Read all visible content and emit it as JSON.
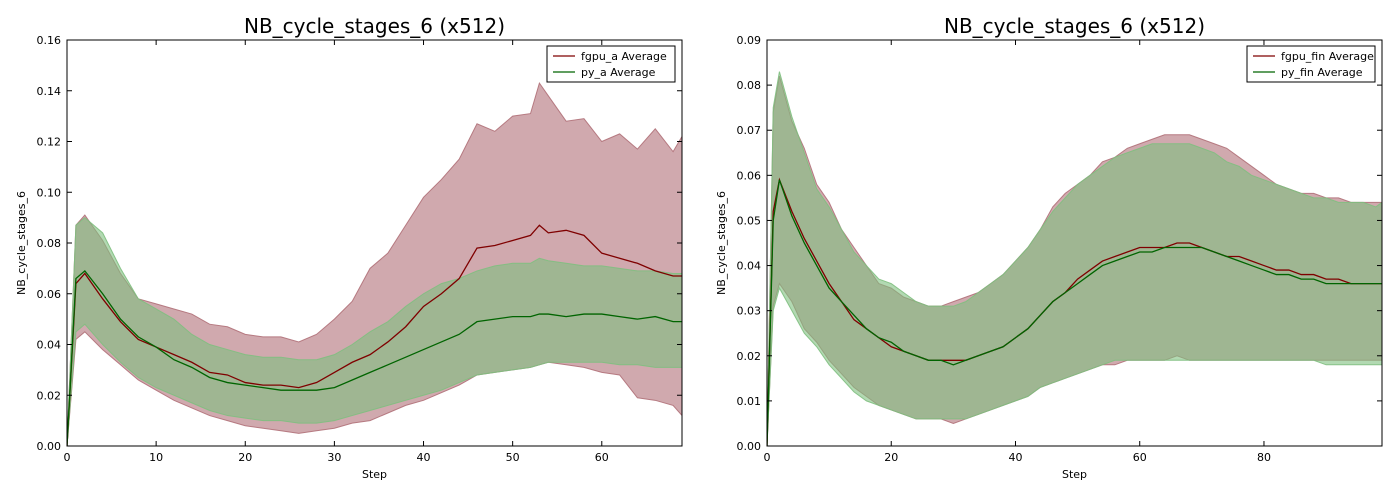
{
  "chart_data": [
    {
      "type": "line",
      "title": "NB_cycle_stages_6 (x512)",
      "xlabel": "Step",
      "ylabel": "NB_cycle_stages_6",
      "xlim": [
        0,
        69
      ],
      "ylim": [
        0,
        0.16
      ],
      "xticks": [
        0,
        10,
        20,
        30,
        40,
        50,
        60
      ],
      "xtick_labels": [
        "0",
        "10",
        "20",
        "30",
        "40",
        "50",
        "60"
      ],
      "yticks": [
        0,
        0.02,
        0.04,
        0.06,
        0.08,
        0.1,
        0.12,
        0.14,
        0.16
      ],
      "ytick_labels": [
        "0.00",
        "0.02",
        "0.04",
        "0.06",
        "0.08",
        "0.10",
        "0.12",
        "0.14",
        "0.16"
      ],
      "legend_position": "top-right",
      "grid": false,
      "series": [
        {
          "name": "fgpu_a Average",
          "line_color": "#7f0000",
          "band_color": "#b07078",
          "x": [
            0,
            1,
            2,
            4,
            6,
            8,
            10,
            12,
            14,
            16,
            18,
            20,
            22,
            24,
            26,
            28,
            30,
            32,
            34,
            36,
            38,
            40,
            42,
            44,
            46,
            48,
            50,
            52,
            53,
            54,
            56,
            58,
            60,
            62,
            64,
            66,
            68,
            69
          ],
          "mean": [
            0,
            0.064,
            0.068,
            0.058,
            0.049,
            0.042,
            0.039,
            0.036,
            0.033,
            0.029,
            0.028,
            0.025,
            0.024,
            0.024,
            0.023,
            0.025,
            0.029,
            0.033,
            0.036,
            0.041,
            0.047,
            0.055,
            0.06,
            0.066,
            0.078,
            0.079,
            0.081,
            0.083,
            0.087,
            0.084,
            0.085,
            0.083,
            0.076,
            0.074,
            0.072,
            0.069,
            0.067,
            0.067
          ],
          "upper": [
            0,
            0.087,
            0.091,
            0.081,
            0.068,
            0.058,
            0.056,
            0.054,
            0.052,
            0.048,
            0.047,
            0.044,
            0.043,
            0.043,
            0.041,
            0.044,
            0.05,
            0.057,
            0.07,
            0.076,
            0.087,
            0.098,
            0.105,
            0.113,
            0.127,
            0.124,
            0.13,
            0.131,
            0.143,
            0.138,
            0.128,
            0.129,
            0.12,
            0.123,
            0.117,
            0.125,
            0.116,
            0.122
          ],
          "lower": [
            0,
            0.042,
            0.045,
            0.038,
            0.032,
            0.026,
            0.022,
            0.018,
            0.015,
            0.012,
            0.01,
            0.008,
            0.007,
            0.006,
            0.005,
            0.006,
            0.007,
            0.009,
            0.01,
            0.013,
            0.016,
            0.018,
            0.021,
            0.024,
            0.028,
            0.029,
            0.03,
            0.031,
            0.032,
            0.033,
            0.032,
            0.031,
            0.029,
            0.028,
            0.019,
            0.018,
            0.016,
            0.012
          ]
        },
        {
          "name": "py_a Average",
          "line_color": "#006400",
          "band_color": "#7fbf7f",
          "x": [
            0,
            1,
            2,
            4,
            6,
            8,
            10,
            12,
            14,
            16,
            18,
            20,
            22,
            24,
            26,
            28,
            30,
            32,
            34,
            36,
            38,
            40,
            42,
            44,
            46,
            48,
            50,
            52,
            53,
            54,
            56,
            58,
            60,
            62,
            64,
            66,
            68,
            69
          ],
          "mean": [
            0,
            0.066,
            0.069,
            0.06,
            0.05,
            0.043,
            0.039,
            0.034,
            0.031,
            0.027,
            0.025,
            0.024,
            0.023,
            0.022,
            0.022,
            0.022,
            0.023,
            0.026,
            0.029,
            0.032,
            0.035,
            0.038,
            0.041,
            0.044,
            0.049,
            0.05,
            0.051,
            0.051,
            0.052,
            0.052,
            0.051,
            0.052,
            0.052,
            0.051,
            0.05,
            0.051,
            0.049,
            0.049
          ],
          "upper": [
            0,
            0.087,
            0.09,
            0.084,
            0.07,
            0.058,
            0.054,
            0.05,
            0.044,
            0.04,
            0.038,
            0.036,
            0.035,
            0.035,
            0.034,
            0.034,
            0.036,
            0.04,
            0.045,
            0.049,
            0.055,
            0.06,
            0.064,
            0.066,
            0.069,
            0.071,
            0.072,
            0.072,
            0.074,
            0.073,
            0.072,
            0.071,
            0.071,
            0.07,
            0.069,
            0.069,
            0.068,
            0.068
          ],
          "lower": [
            0,
            0.045,
            0.048,
            0.04,
            0.033,
            0.027,
            0.023,
            0.02,
            0.017,
            0.014,
            0.012,
            0.011,
            0.01,
            0.01,
            0.009,
            0.009,
            0.01,
            0.012,
            0.014,
            0.016,
            0.018,
            0.02,
            0.022,
            0.025,
            0.028,
            0.029,
            0.03,
            0.031,
            0.032,
            0.033,
            0.033,
            0.033,
            0.033,
            0.032,
            0.032,
            0.031,
            0.031,
            0.031
          ]
        }
      ]
    },
    {
      "type": "line",
      "title": "NB_cycle_stages_6 (x512)",
      "xlabel": "Step",
      "ylabel": "NB_cycle_stages_6",
      "xlim": [
        0,
        99
      ],
      "ylim": [
        0,
        0.09
      ],
      "xticks": [
        0,
        20,
        40,
        60,
        80
      ],
      "xtick_labels": [
        "0",
        "20",
        "40",
        "60",
        "80"
      ],
      "yticks": [
        0,
        0.01,
        0.02,
        0.03,
        0.04,
        0.05,
        0.06,
        0.07,
        0.08,
        0.09
      ],
      "ytick_labels": [
        "0.00",
        "0.01",
        "0.02",
        "0.03",
        "0.04",
        "0.05",
        "0.06",
        "0.07",
        "0.08",
        "0.09"
      ],
      "legend_position": "top-right",
      "grid": false,
      "series": [
        {
          "name": "fgpu_fin Average",
          "line_color": "#7f0000",
          "band_color": "#b07078",
          "x": [
            0,
            1,
            2,
            4,
            6,
            8,
            10,
            12,
            14,
            16,
            18,
            20,
            22,
            24,
            26,
            28,
            30,
            32,
            34,
            36,
            38,
            40,
            42,
            44,
            46,
            48,
            50,
            52,
            54,
            56,
            58,
            60,
            62,
            64,
            66,
            68,
            70,
            72,
            74,
            76,
            78,
            80,
            82,
            84,
            86,
            88,
            90,
            92,
            94,
            96,
            98,
            99
          ],
          "mean": [
            0,
            0.052,
            0.059,
            0.052,
            0.046,
            0.041,
            0.036,
            0.032,
            0.028,
            0.026,
            0.024,
            0.022,
            0.021,
            0.02,
            0.019,
            0.019,
            0.019,
            0.019,
            0.02,
            0.021,
            0.022,
            0.024,
            0.026,
            0.029,
            0.032,
            0.034,
            0.037,
            0.039,
            0.041,
            0.042,
            0.043,
            0.044,
            0.044,
            0.044,
            0.045,
            0.045,
            0.044,
            0.043,
            0.042,
            0.042,
            0.041,
            0.04,
            0.039,
            0.039,
            0.038,
            0.038,
            0.037,
            0.037,
            0.036,
            0.036,
            0.036,
            0.036
          ],
          "upper": [
            0,
            0.074,
            0.082,
            0.072,
            0.066,
            0.058,
            0.054,
            0.048,
            0.044,
            0.04,
            0.036,
            0.035,
            0.033,
            0.032,
            0.031,
            0.031,
            0.032,
            0.033,
            0.034,
            0.036,
            0.038,
            0.041,
            0.044,
            0.048,
            0.053,
            0.056,
            0.058,
            0.06,
            0.063,
            0.064,
            0.066,
            0.067,
            0.068,
            0.069,
            0.069,
            0.069,
            0.068,
            0.067,
            0.066,
            0.064,
            0.062,
            0.06,
            0.058,
            0.057,
            0.056,
            0.056,
            0.055,
            0.055,
            0.054,
            0.054,
            0.054,
            0.054
          ],
          "lower": [
            0,
            0.031,
            0.036,
            0.032,
            0.026,
            0.023,
            0.019,
            0.016,
            0.013,
            0.011,
            0.009,
            0.008,
            0.007,
            0.006,
            0.006,
            0.006,
            0.005,
            0.006,
            0.007,
            0.008,
            0.009,
            0.01,
            0.011,
            0.013,
            0.014,
            0.015,
            0.016,
            0.017,
            0.018,
            0.018,
            0.019,
            0.019,
            0.019,
            0.019,
            0.02,
            0.019,
            0.019,
            0.019,
            0.019,
            0.019,
            0.019,
            0.019,
            0.019,
            0.019,
            0.019,
            0.019,
            0.019,
            0.019,
            0.019,
            0.019,
            0.019,
            0.019
          ]
        },
        {
          "name": "py_fin Average",
          "line_color": "#006400",
          "band_color": "#7fbf7f",
          "x": [
            0,
            1,
            2,
            4,
            6,
            8,
            10,
            12,
            14,
            16,
            18,
            20,
            22,
            24,
            26,
            28,
            30,
            32,
            34,
            36,
            38,
            40,
            42,
            44,
            46,
            48,
            50,
            52,
            54,
            56,
            58,
            60,
            62,
            64,
            66,
            68,
            70,
            72,
            74,
            76,
            78,
            80,
            82,
            84,
            86,
            88,
            90,
            92,
            94,
            96,
            98,
            99
          ],
          "mean": [
            0,
            0.05,
            0.059,
            0.051,
            0.045,
            0.04,
            0.035,
            0.032,
            0.029,
            0.026,
            0.024,
            0.023,
            0.021,
            0.02,
            0.019,
            0.019,
            0.018,
            0.019,
            0.02,
            0.021,
            0.022,
            0.024,
            0.026,
            0.029,
            0.032,
            0.034,
            0.036,
            0.038,
            0.04,
            0.041,
            0.042,
            0.043,
            0.043,
            0.044,
            0.044,
            0.044,
            0.044,
            0.043,
            0.042,
            0.041,
            0.04,
            0.039,
            0.038,
            0.038,
            0.037,
            0.037,
            0.036,
            0.036,
            0.036,
            0.036,
            0.036,
            0.036
          ],
          "upper": [
            0,
            0.075,
            0.083,
            0.073,
            0.065,
            0.057,
            0.053,
            0.048,
            0.043,
            0.04,
            0.037,
            0.036,
            0.034,
            0.032,
            0.031,
            0.031,
            0.031,
            0.032,
            0.034,
            0.036,
            0.038,
            0.041,
            0.044,
            0.048,
            0.052,
            0.055,
            0.058,
            0.06,
            0.062,
            0.064,
            0.065,
            0.066,
            0.067,
            0.067,
            0.067,
            0.067,
            0.066,
            0.065,
            0.063,
            0.062,
            0.06,
            0.059,
            0.058,
            0.057,
            0.056,
            0.055,
            0.055,
            0.054,
            0.054,
            0.054,
            0.053,
            0.054
          ],
          "lower": [
            0,
            0.03,
            0.035,
            0.03,
            0.025,
            0.022,
            0.018,
            0.015,
            0.012,
            0.01,
            0.009,
            0.008,
            0.007,
            0.006,
            0.006,
            0.006,
            0.006,
            0.006,
            0.007,
            0.008,
            0.009,
            0.01,
            0.011,
            0.013,
            0.014,
            0.015,
            0.016,
            0.017,
            0.018,
            0.019,
            0.019,
            0.019,
            0.019,
            0.019,
            0.019,
            0.019,
            0.019,
            0.019,
            0.019,
            0.019,
            0.019,
            0.019,
            0.019,
            0.019,
            0.019,
            0.019,
            0.018,
            0.018,
            0.018,
            0.018,
            0.018,
            0.018
          ]
        }
      ]
    }
  ]
}
